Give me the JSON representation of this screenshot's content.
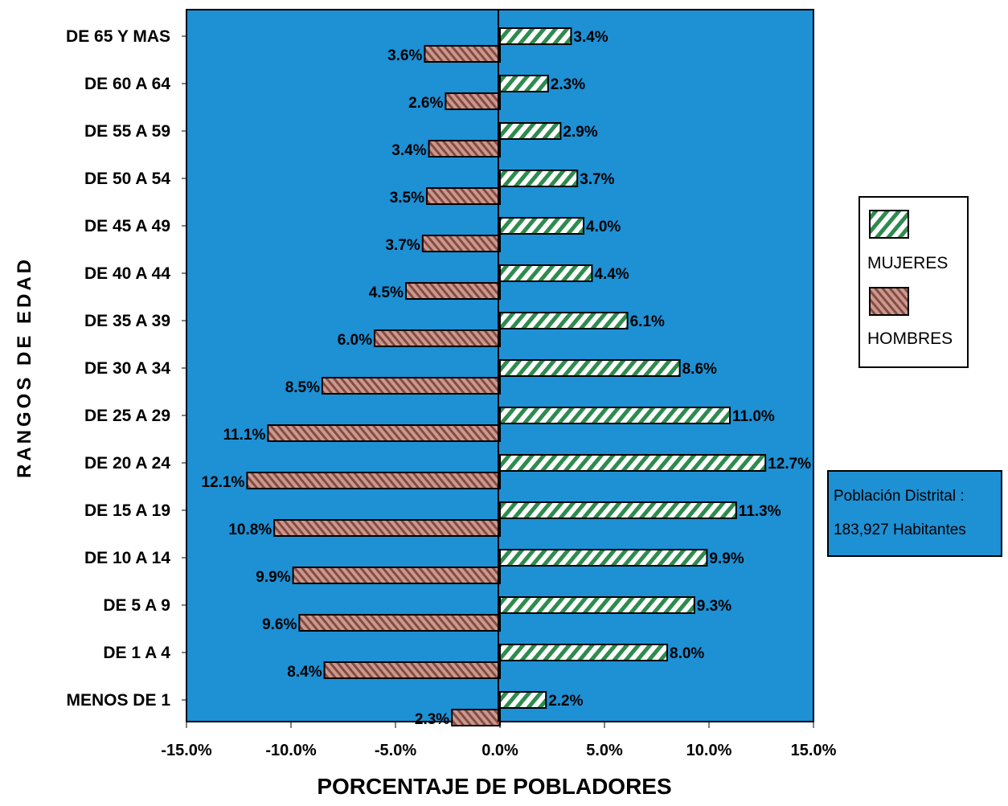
{
  "chart_data": {
    "type": "bar",
    "orientation": "horizontal",
    "categories": [
      "DE 65 Y MAS",
      "DE 60 A 64",
      "DE 55 A 59",
      "DE 50 A 54",
      "DE 45 A 49",
      "DE 40 A 44",
      "DE 35 A 39",
      "DE 30 A 34",
      "DE 25 A 29",
      "DE 20 A 24",
      "DE 15 A 19",
      "DE 10 A 14",
      "DE  5 A  9",
      "DE  1 A  4",
      "MENOS DE 1"
    ],
    "series": [
      {
        "name": "MUJERES",
        "values": [
          3.4,
          2.3,
          2.9,
          3.7,
          4.0,
          4.4,
          6.1,
          8.6,
          11.0,
          12.7,
          11.3,
          9.9,
          9.3,
          8.0,
          2.2
        ],
        "labels": [
          "3.4%",
          "2.3%",
          "2.9%",
          "3.7%",
          "4.0%",
          "4.4%",
          "6.1%",
          "8.6%",
          "11.0%",
          "12.7%",
          "11.3%",
          "9.9%",
          "9.3%",
          "8.0%",
          "2.2%"
        ],
        "color": "#2e8b4e",
        "pattern": "diagonal-hatch"
      },
      {
        "name": "HOMBRES",
        "values": [
          -3.6,
          -2.6,
          -3.4,
          -3.5,
          -3.7,
          -4.5,
          -6.0,
          -8.5,
          -11.1,
          -12.1,
          -10.8,
          -9.9,
          -9.6,
          -8.4,
          -2.3
        ],
        "labels": [
          "3.6%",
          "2.6%",
          "3.4%",
          "3.5%",
          "3.7%",
          "4.5%",
          "6.0%",
          "8.5%",
          "11.1%",
          "12.1%",
          "10.8%",
          "9.9%",
          "9.6%",
          "8.4%",
          "2.3%"
        ],
        "color": "#b3756a",
        "pattern": "diagonal-hatch"
      }
    ],
    "xlim": [
      -15,
      15
    ],
    "xticks": [
      -15,
      -10,
      -5,
      0,
      5,
      10,
      15
    ],
    "xtick_labels": [
      "-15.0%",
      "-10.0%",
      "-5.0%",
      "0.0%",
      "5.0%",
      "10.0%",
      "15.0%"
    ],
    "xlabel": "PORCENTAJE DE POBLADORES",
    "ylabel": "RANGOS DE EDAD",
    "legend": {
      "position": "right",
      "entries": [
        "MUJERES",
        "HOMBRES"
      ]
    },
    "plot_background": "#1e90d4",
    "annotation": {
      "line1": "Población Distrital :",
      "line2": "183,927  Habitantes",
      "background": "#1e90d4"
    },
    "grid": false
  }
}
